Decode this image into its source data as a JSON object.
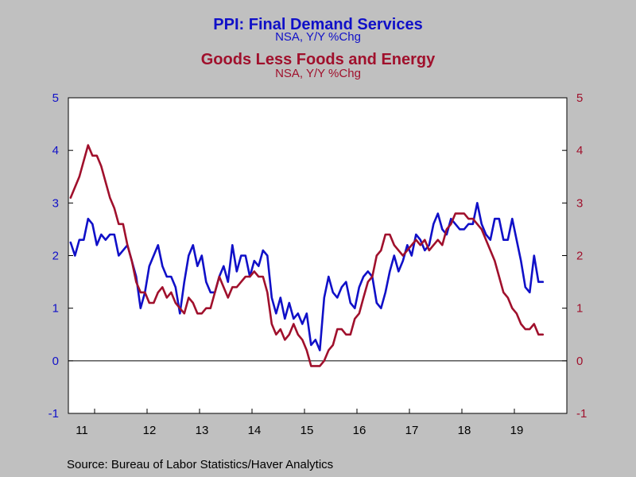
{
  "titles": {
    "services_title": "PPI: Final Demand Services",
    "services_sub": "NSA, Y/Y %Chg",
    "goods_title": "Goods Less Foods and Energy",
    "goods_sub": "NSA, Y/Y %Chg"
  },
  "source": "Source:  Bureau of Labor Statistics/Haver Analytics",
  "colors": {
    "services": "#1010c8",
    "goods": "#a0102c",
    "axis_left": "#1010c8",
    "axis_right": "#a0102c"
  },
  "chart_data": {
    "type": "line",
    "x_start": "2010-07",
    "x_end": "2019-12",
    "x_tick_labels": [
      "11",
      "12",
      "13",
      "14",
      "15",
      "16",
      "17",
      "18",
      "19"
    ],
    "x_tick_years": [
      2011,
      2012,
      2013,
      2014,
      2015,
      2016,
      2017,
      2018,
      2019
    ],
    "ylim": [
      -1,
      5
    ],
    "y_ticks": [
      -1,
      0,
      1,
      2,
      3,
      4,
      5
    ],
    "zero_line": true,
    "series": [
      {
        "name": "PPI: Final Demand Services",
        "key": "services",
        "values": [
          2.25,
          2.0,
          2.3,
          2.3,
          2.7,
          2.6,
          2.2,
          2.4,
          2.3,
          2.4,
          2.4,
          2.0,
          2.1,
          2.2,
          1.9,
          1.6,
          1.0,
          1.3,
          1.8,
          2.0,
          2.2,
          1.8,
          1.6,
          1.6,
          1.4,
          0.9,
          1.5,
          2.0,
          2.2,
          1.8,
          2.0,
          1.5,
          1.3,
          1.3,
          1.6,
          1.8,
          1.5,
          2.2,
          1.7,
          2.0,
          2.0,
          1.6,
          1.9,
          1.8,
          2.1,
          2.0,
          1.2,
          0.9,
          1.2,
          0.8,
          1.1,
          0.8,
          0.9,
          0.7,
          0.9,
          0.3,
          0.4,
          0.2,
          1.2,
          1.6,
          1.3,
          1.2,
          1.4,
          1.5,
          1.1,
          1.0,
          1.4,
          1.6,
          1.7,
          1.6,
          1.1,
          1.0,
          1.3,
          1.7,
          2.0,
          1.7,
          1.9,
          2.2,
          2.0,
          2.4,
          2.3,
          2.1,
          2.2,
          2.6,
          2.8,
          2.5,
          2.4,
          2.7,
          2.6,
          2.5,
          2.5,
          2.6,
          2.6,
          3.0,
          2.6,
          2.4,
          2.3,
          2.7,
          2.7,
          2.3,
          2.3,
          2.7,
          2.3,
          1.9,
          1.4,
          1.3,
          2.0,
          1.5,
          1.5
        ]
      },
      {
        "name": "Goods Less Foods and Energy",
        "key": "goods",
        "values": [
          3.1,
          3.3,
          3.5,
          3.8,
          4.1,
          3.9,
          3.9,
          3.7,
          3.4,
          3.1,
          2.9,
          2.6,
          2.6,
          2.2,
          1.9,
          1.5,
          1.3,
          1.3,
          1.1,
          1.1,
          1.3,
          1.4,
          1.2,
          1.3,
          1.1,
          1.0,
          0.9,
          1.2,
          1.1,
          0.9,
          0.9,
          1.0,
          1.0,
          1.3,
          1.6,
          1.4,
          1.2,
          1.4,
          1.4,
          1.5,
          1.6,
          1.6,
          1.7,
          1.6,
          1.6,
          1.3,
          0.7,
          0.5,
          0.6,
          0.4,
          0.5,
          0.7,
          0.5,
          0.4,
          0.2,
          -0.1,
          -0.1,
          -0.1,
          0.0,
          0.2,
          0.3,
          0.6,
          0.6,
          0.5,
          0.5,
          0.8,
          0.9,
          1.2,
          1.5,
          1.6,
          2.0,
          2.1,
          2.4,
          2.4,
          2.2,
          2.1,
          2.0,
          2.1,
          2.2,
          2.3,
          2.2,
          2.3,
          2.1,
          2.2,
          2.3,
          2.2,
          2.5,
          2.6,
          2.8,
          2.8,
          2.8,
          2.7,
          2.7,
          2.6,
          2.5,
          2.3,
          2.1,
          1.9,
          1.6,
          1.3,
          1.2,
          1.0,
          0.9,
          0.7,
          0.6,
          0.6,
          0.7,
          0.5,
          0.5
        ]
      }
    ]
  }
}
